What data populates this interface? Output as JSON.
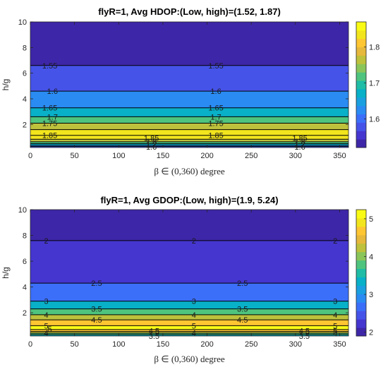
{
  "chart_data": [
    {
      "type": "heatmap",
      "subtype": "filled-contour",
      "title": "flyR=1, Avg HDOP:(Low, high)=(1.52, 1.87)",
      "xlabel": "β ∈ (0,360) degree",
      "ylabel": "h/g",
      "xlim": [
        0,
        360
      ],
      "ylim": [
        0.2,
        10
      ],
      "xticks": [
        0,
        50,
        100,
        150,
        200,
        250,
        300,
        350
      ],
      "yticks": [
        2,
        4,
        6,
        8,
        10
      ],
      "clim": [
        1.52,
        1.87
      ],
      "colorbar_ticks": [
        1.6,
        1.7,
        1.8
      ],
      "level_step": 0.05,
      "boundaries": [
        {
          "level": 1.55,
          "h": 6.6
        },
        {
          "level": 1.6,
          "h": 4.6
        },
        {
          "level": 1.65,
          "h": 3.3
        },
        {
          "level": 1.7,
          "h": 2.6
        },
        {
          "level": 1.75,
          "h": 2.1
        },
        {
          "level": 1.8,
          "h": 1.6
        },
        {
          "level": 1.85,
          "h": 1.15
        },
        {
          "level": 1.8,
          "h": 0.85
        },
        {
          "level": 1.75,
          "h": 0.65
        },
        {
          "level": 1.7,
          "h": 0.5
        },
        {
          "level": 1.65,
          "h": 0.38
        },
        {
          "level": 1.6,
          "h": 0.28
        }
      ],
      "contour_labels": [
        {
          "text": "1.55",
          "x": 22,
          "y": 6.6
        },
        {
          "text": "1.55",
          "x": 210,
          "y": 6.6
        },
        {
          "text": "1.6",
          "x": 25,
          "y": 4.6
        },
        {
          "text": "1.6",
          "x": 210,
          "y": 4.6
        },
        {
          "text": "1.65",
          "x": 22,
          "y": 3.3
        },
        {
          "text": "1.65",
          "x": 210,
          "y": 3.3
        },
        {
          "text": "1.7",
          "x": 25,
          "y": 2.6
        },
        {
          "text": "1.7",
          "x": 210,
          "y": 2.6
        },
        {
          "text": "1.75",
          "x": 22,
          "y": 2.1
        },
        {
          "text": "1.75",
          "x": 210,
          "y": 2.1
        },
        {
          "text": "1.85",
          "x": 22,
          "y": 1.15
        },
        {
          "text": "1.85",
          "x": 210,
          "y": 1.15
        },
        {
          "text": "1.85",
          "x": 137,
          "y": 0.95
        },
        {
          "text": "1.85",
          "x": 305,
          "y": 0.95
        },
        {
          "text": "1.8",
          "x": 137,
          "y": 0.7
        },
        {
          "text": "1.8",
          "x": 305,
          "y": 0.7
        },
        {
          "text": "1.7",
          "x": 137,
          "y": 0.45
        },
        {
          "text": "1.7",
          "x": 305,
          "y": 0.45
        },
        {
          "text": "1.6",
          "x": 137,
          "y": 0.25
        },
        {
          "text": "1.6",
          "x": 305,
          "y": 0.25
        }
      ]
    },
    {
      "type": "heatmap",
      "subtype": "filled-contour",
      "title": "flyR=1, Avg GDOP:(Low, high)=(1.9, 5.24)",
      "xlabel": "β ∈ (0,360) degree",
      "ylabel": "h/g",
      "xlim": [
        0,
        360
      ],
      "ylim": [
        0.2,
        10
      ],
      "xticks": [
        0,
        50,
        100,
        150,
        200,
        250,
        300,
        350
      ],
      "yticks": [
        2,
        4,
        6,
        8,
        10
      ],
      "clim": [
        1.9,
        5.24
      ],
      "colorbar_ticks": [
        2,
        3,
        4,
        5
      ],
      "level_step": 0.5,
      "boundaries": [
        {
          "level": 2,
          "h": 7.6
        },
        {
          "level": 2.5,
          "h": 4.3
        },
        {
          "level": 3,
          "h": 2.9
        },
        {
          "level": 3.5,
          "h": 2.3
        },
        {
          "level": 4,
          "h": 1.85
        },
        {
          "level": 4.5,
          "h": 1.45
        },
        {
          "level": 5,
          "h": 1.0
        },
        {
          "level": 5,
          "h": 0.7
        },
        {
          "level": 4.5,
          "h": 0.55
        },
        {
          "level": 4,
          "h": 0.42
        },
        {
          "level": 3.5,
          "h": 0.3
        }
      ],
      "contour_labels": [
        {
          "text": "2",
          "x": 18,
          "y": 7.6
        },
        {
          "text": "2",
          "x": 185,
          "y": 7.6
        },
        {
          "text": "2",
          "x": 345,
          "y": 7.6
        },
        {
          "text": "2.5",
          "x": 75,
          "y": 4.3
        },
        {
          "text": "2.5",
          "x": 240,
          "y": 4.3
        },
        {
          "text": "3",
          "x": 18,
          "y": 2.9
        },
        {
          "text": "3",
          "x": 185,
          "y": 2.9
        },
        {
          "text": "3",
          "x": 345,
          "y": 2.9
        },
        {
          "text": "3.5",
          "x": 75,
          "y": 2.3
        },
        {
          "text": "3.5",
          "x": 240,
          "y": 2.3
        },
        {
          "text": "4",
          "x": 18,
          "y": 1.85
        },
        {
          "text": "4",
          "x": 185,
          "y": 1.85
        },
        {
          "text": "4",
          "x": 345,
          "y": 1.85
        },
        {
          "text": "4.5",
          "x": 75,
          "y": 1.45
        },
        {
          "text": "4.5",
          "x": 240,
          "y": 1.45
        },
        {
          "text": "5",
          "x": 18,
          "y": 1.0
        },
        {
          "text": "5",
          "x": 185,
          "y": 1.0
        },
        {
          "text": "5",
          "x": 345,
          "y": 1.0
        },
        {
          "text": "5",
          "x": 22,
          "y": 0.75
        },
        {
          "text": "5",
          "x": 345,
          "y": 0.6
        },
        {
          "text": "4.5",
          "x": 140,
          "y": 0.6
        },
        {
          "text": "4.5",
          "x": 310,
          "y": 0.6
        },
        {
          "text": "4",
          "x": 18,
          "y": 0.45
        },
        {
          "text": "4",
          "x": 185,
          "y": 0.45
        },
        {
          "text": "4",
          "x": 345,
          "y": 0.4
        },
        {
          "text": "3.5",
          "x": 140,
          "y": 0.2
        },
        {
          "text": "3.5",
          "x": 310,
          "y": 0.2
        }
      ]
    }
  ],
  "colormap": [
    "#3e26a8",
    "#4536d0",
    "#4653e9",
    "#3b6ffa",
    "#2a8bf3",
    "#1aa0e0",
    "#08b0c8",
    "#1fbca6",
    "#4ec47f",
    "#8ac55a",
    "#bec13b",
    "#e6b83b",
    "#fdc632",
    "#f2e51d",
    "#f9fb15"
  ]
}
